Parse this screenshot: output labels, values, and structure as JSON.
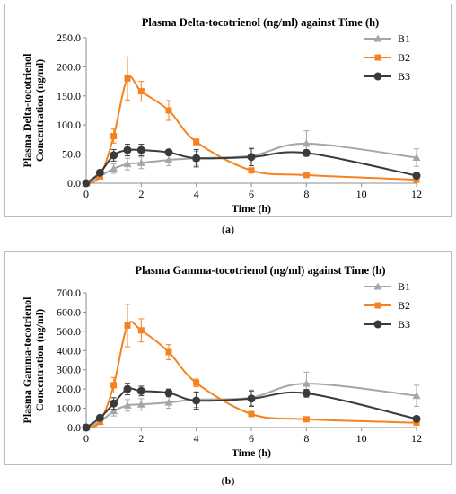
{
  "chart_data": [
    {
      "type": "line",
      "title": "Plasma Delta-tocotrienol (ng/ml) against Time (h)",
      "xlabel": "Time (h)",
      "ylabel_lines": [
        "Plasma Delta-tocotrienol",
        "Concentration (ng/ml)"
      ],
      "xlim": [
        0,
        12
      ],
      "ylim": [
        0,
        250
      ],
      "xticks": [
        0,
        2,
        4,
        6,
        8,
        10,
        12
      ],
      "yticks": [
        0,
        50,
        100,
        150,
        200,
        250
      ],
      "ytick_labels": [
        "0.0",
        "50.0",
        "100.0",
        "150.0",
        "200.0",
        "250.0"
      ],
      "legend_position": "top-right",
      "grid": false,
      "caption_letter": "a",
      "series": [
        {
          "name": "B1",
          "color": "#a6a6a6",
          "marker": "triangle",
          "x": [
            0,
            0.5,
            1,
            1.5,
            2,
            3,
            4,
            6,
            8,
            12
          ],
          "y": [
            0,
            12,
            25,
            33,
            35,
            40,
            43,
            47,
            68,
            44
          ],
          "err": [
            0,
            3,
            8,
            10,
            10,
            10,
            12,
            12,
            22,
            15
          ]
        },
        {
          "name": "B2",
          "color": "#f5821f",
          "marker": "square",
          "x": [
            0,
            0.5,
            1,
            1.5,
            2,
            3,
            4,
            6,
            8,
            12
          ],
          "y": [
            0,
            12,
            81,
            180,
            158,
            125,
            71,
            22,
            14,
            6
          ],
          "err": [
            0,
            3,
            12,
            37,
            17,
            17,
            5,
            3,
            2,
            1
          ]
        },
        {
          "name": "B3",
          "color": "#3a3a3a",
          "marker": "circle",
          "x": [
            0,
            0.5,
            1,
            1.5,
            2,
            3,
            4,
            6,
            8,
            12
          ],
          "y": [
            0,
            18,
            48,
            57,
            57,
            53,
            43,
            45,
            52,
            13
          ],
          "err": [
            0,
            3,
            10,
            10,
            10,
            5,
            15,
            15,
            5,
            3
          ]
        }
      ]
    },
    {
      "type": "line",
      "title": "Plasma Gamma-tocotrienol (ng/ml) against Time (h)",
      "xlabel": "Time (h)",
      "ylabel_lines": [
        "Plasma Gamma-tocotrienol",
        "Concentration (ng/ml)"
      ],
      "xlim": [
        0,
        12
      ],
      "ylim": [
        0,
        700
      ],
      "xticks": [
        0,
        2,
        4,
        6,
        8,
        10,
        12
      ],
      "yticks": [
        0,
        100,
        200,
        300,
        400,
        500,
        600,
        700
      ],
      "ytick_labels": [
        "0.0",
        "100.0",
        "200.0",
        "300.0",
        "400.0",
        "500.0",
        "600.0",
        "700.0"
      ],
      "legend_position": "top-right",
      "grid": false,
      "caption_letter": "b",
      "series": [
        {
          "name": "B1",
          "color": "#a6a6a6",
          "marker": "triangle",
          "x": [
            0,
            0.5,
            1,
            1.5,
            2,
            3,
            4,
            6,
            8,
            12
          ],
          "y": [
            0,
            30,
            85,
            115,
            120,
            130,
            145,
            155,
            228,
            165
          ],
          "err": [
            0,
            10,
            25,
            30,
            30,
            30,
            40,
            40,
            60,
            55
          ]
        },
        {
          "name": "B2",
          "color": "#f5821f",
          "marker": "square",
          "x": [
            0,
            0.5,
            1,
            1.5,
            2,
            3,
            4,
            6,
            8,
            12
          ],
          "y": [
            0,
            30,
            220,
            530,
            505,
            392,
            232,
            70,
            43,
            25
          ],
          "err": [
            0,
            10,
            40,
            110,
            60,
            40,
            20,
            5,
            5,
            3
          ]
        },
        {
          "name": "B3",
          "color": "#3a3a3a",
          "marker": "circle",
          "x": [
            0,
            0.5,
            1,
            1.5,
            2,
            3,
            4,
            6,
            8,
            12
          ],
          "y": [
            0,
            50,
            125,
            200,
            190,
            180,
            140,
            150,
            178,
            45
          ],
          "err": [
            0,
            10,
            30,
            30,
            25,
            20,
            45,
            40,
            20,
            10
          ]
        }
      ]
    }
  ]
}
